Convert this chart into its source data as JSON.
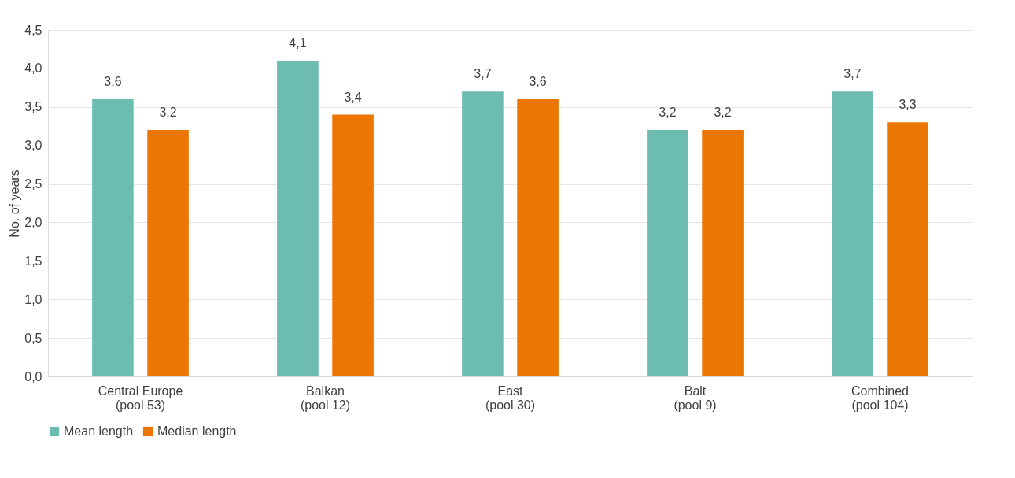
{
  "chart_data": {
    "type": "bar",
    "ylabel": "No. of years",
    "categories": [
      "Central Europe\n(pool 53)",
      "Balkan\n(pool 12)",
      "East\n(pool 30)",
      "Balt\n(pool 9)",
      "Combined\n(pool 104)"
    ],
    "series": [
      {
        "name": "Mean length",
        "color": "#6cbdb0",
        "values": [
          3.6,
          4.1,
          3.7,
          3.2,
          3.7
        ],
        "value_labels": [
          "3,6",
          "4,1",
          "3,7",
          "3,2",
          "3,7"
        ]
      },
      {
        "name": "Median length",
        "color": "#ec7604",
        "values": [
          3.2,
          3.4,
          3.6,
          3.2,
          3.3
        ],
        "value_labels": [
          "3,2",
          "3,4",
          "3,6",
          "3,2",
          "3,3"
        ]
      }
    ],
    "ylim": [
      0,
      4.5
    ],
    "yticks": [
      {
        "value": 0,
        "label": "0,0"
      },
      {
        "value": 0.5,
        "label": "0,5"
      },
      {
        "value": 1,
        "label": "1,0"
      },
      {
        "value": 1.5,
        "label": "1,5"
      },
      {
        "value": 2,
        "label": "2,0"
      },
      {
        "value": 2.5,
        "label": "2,5"
      },
      {
        "value": 3,
        "label": "3,0"
      },
      {
        "value": 3.5,
        "label": "3,5"
      },
      {
        "value": 4,
        "label": "4,0"
      },
      {
        "value": 4.5,
        "label": "4,5"
      }
    ],
    "grid": "y",
    "legend": "bottom"
  }
}
